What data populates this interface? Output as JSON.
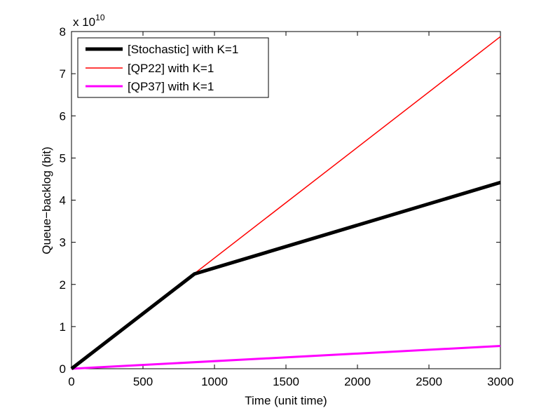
{
  "chart_data": {
    "type": "line",
    "title": "",
    "xlabel": "Time (unit time)",
    "ylabel": "Queue−backlog (bit)",
    "xlim": [
      0,
      3000
    ],
    "ylim": [
      0,
      8
    ],
    "y_multiplier_label": {
      "base": "x 10",
      "exponent": "10"
    },
    "x_ticks": [
      0,
      500,
      1000,
      1500,
      2000,
      2500,
      3000
    ],
    "y_ticks": [
      0,
      1,
      2,
      3,
      4,
      5,
      6,
      7,
      8
    ],
    "x_tick_labels": [
      "0",
      "500",
      "1000",
      "1500",
      "2000",
      "2500",
      "3000"
    ],
    "y_tick_labels": [
      "0",
      "1",
      "2",
      "3",
      "4",
      "5",
      "6",
      "7",
      "8"
    ],
    "grid": false,
    "legend_position": "top-left",
    "series": [
      {
        "name": "[Stochastic] with K=1",
        "color": "#000000",
        "width": "thick",
        "x": [
          0,
          860,
          3000
        ],
        "y": [
          0,
          2.25,
          4.42
        ]
      },
      {
        "name": "[QP22] with K=1",
        "color": "#ff0000",
        "width": "thin",
        "x": [
          0,
          3000
        ],
        "y": [
          0,
          7.88
        ]
      },
      {
        "name": "[QP37] with K=1",
        "color": "#ff00ff",
        "width": "medium",
        "x": [
          0,
          3000
        ],
        "y": [
          0,
          0.54
        ]
      }
    ]
  }
}
